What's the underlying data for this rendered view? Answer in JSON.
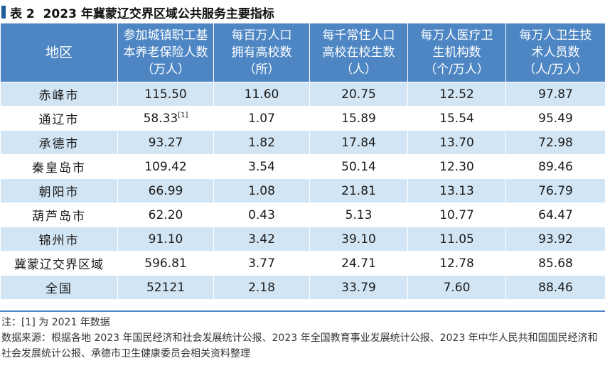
{
  "title": {
    "label": "表 2",
    "text": "2023 年冀蒙辽交界区域公共服务主要指标"
  },
  "colors": {
    "header_bg": "#4e86c4",
    "band_bg": "#d2e5f4",
    "title_mark": "#1d5d9a"
  },
  "table": {
    "headers": [
      {
        "lines": [
          "地区"
        ]
      },
      {
        "lines": [
          "参加城镇职工基",
          "本养老保险人数",
          "（万人）"
        ]
      },
      {
        "lines": [
          "每百万人口",
          "拥有高校数",
          "（所）"
        ]
      },
      {
        "lines": [
          "每千常住人口",
          "高校在校生数",
          "（人）"
        ]
      },
      {
        "lines": [
          "每万人医疗卫",
          "生机构数",
          "（个/万人）"
        ]
      },
      {
        "lines": [
          "每万人卫生技",
          "术人员数",
          "（人/万人）"
        ]
      }
    ],
    "rows": [
      {
        "region": "赤峰市",
        "pension": "115.50",
        "pension_note": "",
        "colleges": "11.60",
        "students": "20.75",
        "medical": "12.52",
        "health_staff": "97.87"
      },
      {
        "region": "通辽市",
        "pension": "58.33",
        "pension_note": "[1]",
        "colleges": "1.07",
        "students": "15.89",
        "medical": "15.54",
        "health_staff": "95.49"
      },
      {
        "region": "承德市",
        "pension": "93.27",
        "pension_note": "",
        "colleges": "1.82",
        "students": "17.84",
        "medical": "13.70",
        "health_staff": "72.98"
      },
      {
        "region": "秦皇岛市",
        "pension": "109.42",
        "pension_note": "",
        "colleges": "3.54",
        "students": "50.14",
        "medical": "12.30",
        "health_staff": "89.46"
      },
      {
        "region": "朝阳市",
        "pension": "66.99",
        "pension_note": "",
        "colleges": "1.08",
        "students": "21.81",
        "medical": "13.13",
        "health_staff": "76.79"
      },
      {
        "region": "葫芦岛市",
        "pension": "62.20",
        "pension_note": "",
        "colleges": "0.43",
        "students": "5.13",
        "medical": "10.77",
        "health_staff": "64.47"
      },
      {
        "region": "锦州市",
        "pension": "91.10",
        "pension_note": "",
        "colleges": "3.42",
        "students": "39.10",
        "medical": "11.05",
        "health_staff": "93.92"
      },
      {
        "region": "冀蒙辽交界区域",
        "pension": "596.81",
        "pension_note": "",
        "colleges": "3.77",
        "students": "24.71",
        "medical": "12.78",
        "health_staff": "85.68"
      },
      {
        "region": "全国",
        "pension": "52121",
        "pension_note": "",
        "colleges": "2.18",
        "students": "33.79",
        "medical": "7.60",
        "health_staff": "88.46"
      }
    ]
  },
  "notes": {
    "note": "注：[1] 为 2021 年数据",
    "source": "数据来源：根据各地 2023 年国民经济和社会发展统计公报、2023 年全国教育事业发展统计公报、2023 年中华人民共和国国民经济和社会发展统计公报、承德市卫生健康委员会相关资料整理"
  }
}
